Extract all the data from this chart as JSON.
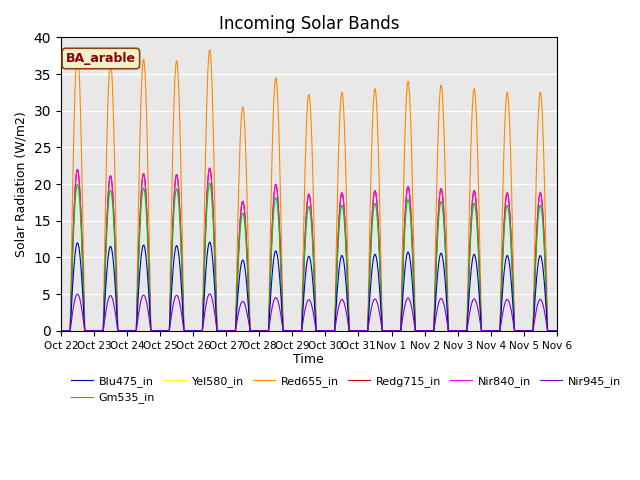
{
  "title": "Incoming Solar Bands",
  "xlabel": "Time",
  "ylabel": "Solar Radiation (W/m2)",
  "ylim": [
    0,
    40
  ],
  "annotation_text": "BA_arable",
  "background_color": "#e8e8e8",
  "series": [
    {
      "name": "Blu475_in",
      "color": "#0000cc"
    },
    {
      "name": "Gm535_in",
      "color": "#00cc00"
    },
    {
      "name": "Yel580_in",
      "color": "#ffff00"
    },
    {
      "name": "Red655_in",
      "color": "#ff8800"
    },
    {
      "name": "Redg715_in",
      "color": "#cc0000"
    },
    {
      "name": "Nir840_in",
      "color": "#ff00ff"
    },
    {
      "name": "Nir945_in",
      "color": "#8800cc"
    }
  ],
  "tick_labels": [
    "Oct 22",
    "Oct 23",
    "Oct 24",
    "Oct 25",
    "Oct 26",
    "Oct 27",
    "Oct 28",
    "Oct 29",
    "Oct 30",
    "Oct 31",
    "Nov 1",
    "Nov 2",
    "Nov 3",
    "Nov 4",
    "Nov 5",
    "Nov 6"
  ],
  "num_days": 15,
  "day_peaks_orange": [
    38.0,
    36.5,
    37.0,
    36.8,
    38.3,
    30.5,
    34.5,
    32.2,
    32.5,
    33.0,
    34.0,
    33.5,
    33.0,
    32.5,
    32.5
  ],
  "scale_ratios": {
    "Blu475_in": 0.3158,
    "Gm535_in": 0.5263,
    "Yel580_in": 0.5789,
    "Red655_in": 1.0,
    "Redg715_in": 0.5789,
    "Nir840_in": 0.5789,
    "Nir945_in": 0.1316
  },
  "title_fontsize": 12,
  "legend_fontsize": 8,
  "figsize": [
    6.4,
    4.8
  ],
  "dpi": 100
}
